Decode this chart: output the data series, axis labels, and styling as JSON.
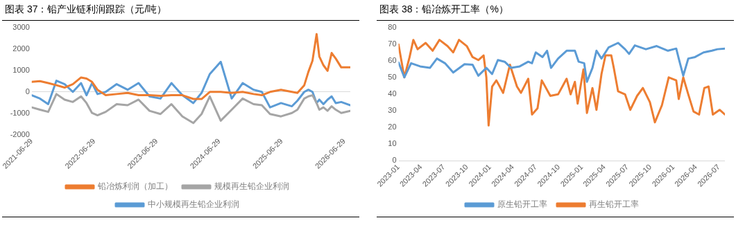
{
  "chart_data": [
    {
      "type": "line",
      "title": "图表 37：铅产业链利润跟踪（元/吨）",
      "legend": "bottom",
      "marker": "none",
      "x": [
        "2021-06-29",
        "2021-08-16",
        "2021-10-03",
        "2021-11-20",
        "2022-01-07",
        "2022-02-24",
        "2022-04-13",
        "2022-05-15",
        "2022-06-16",
        "2022-07-18",
        "2022-09-04",
        "2022-11-07",
        "2023-01-10",
        "2023-03-15",
        "2023-05-18",
        "2023-07-21",
        "2023-09-23",
        "2023-11-26",
        "2024-01-29",
        "2024-03-17",
        "2024-05-04",
        "2024-07-07",
        "2024-09-09",
        "2024-11-12",
        "2025-01-15",
        "2025-03-04",
        "2025-04-21",
        "2025-06-24",
        "2025-08-27",
        "2025-09-28",
        "2025-11-07",
        "2025-12-01",
        "2025-12-25",
        "2026-01-18",
        "2026-02-03",
        "2026-02-27",
        "2026-03-23",
        "2026-04-16",
        "2026-05-10",
        "2026-06-11",
        "2026-08-03"
      ],
      "xlim": [
        "2021-06-29",
        "2026-08-03"
      ],
      "xticks": [
        "2021-06-29",
        "2022-06-29",
        "2023-06-29",
        "2024-06-29",
        "2025-06-29",
        "2026-06-29"
      ],
      "ylim": [
        -2000,
        3000
      ],
      "yticks": [
        -2000,
        -1000,
        0,
        1000,
        2000,
        3000
      ],
      "series": [
        {
          "name": "铅冶炼利润（加工）",
          "color": "#ed7d31",
          "values": [
            465,
            500,
            410,
            310,
            200,
            360,
            670,
            620,
            465,
            100,
            -155,
            -100,
            -50,
            -155,
            -155,
            -185,
            -155,
            -155,
            -330,
            -330,
            0,
            0,
            -50,
            0,
            -100,
            -155,
            0,
            100,
            0,
            -50,
            310,
            930,
            1450,
            2690,
            1650,
            1240,
            980,
            1810,
            1550,
            1140,
            1140
          ]
        },
        {
          "name": "规模再生铅企业利润",
          "color": "#a5a5a5",
          "values": [
            -720,
            -830,
            -930,
            -100,
            -360,
            -470,
            -210,
            -520,
            -980,
            -1090,
            -930,
            -570,
            -620,
            -360,
            -880,
            -1030,
            -570,
            -1140,
            -1450,
            -1030,
            -210,
            -1340,
            -830,
            -310,
            -570,
            -620,
            -1030,
            -1140,
            -980,
            -830,
            -310,
            -210,
            -155,
            -520,
            -830,
            -720,
            -880,
            -670,
            -830,
            -980,
            -880
          ]
        },
        {
          "name": "中小规模再生铅企业利润",
          "color": "#5b9bd5",
          "values": [
            -155,
            -310,
            -570,
            520,
            360,
            0,
            410,
            -155,
            410,
            -100,
            0,
            360,
            100,
            410,
            -210,
            -310,
            410,
            -155,
            -520,
            -50,
            830,
            1400,
            -310,
            410,
            100,
            0,
            -720,
            -520,
            -670,
            -410,
            0,
            100,
            0,
            -520,
            -360,
            -570,
            -360,
            -210,
            -520,
            -470,
            -620
          ]
        }
      ]
    },
    {
      "type": "line",
      "title": "图表 38：铅冶炼开工率（%）",
      "legend": "bottom",
      "marker": "none",
      "xlim": [
        "2023-01-01",
        "2026-07-25"
      ],
      "xticks": [
        "2023-01",
        "2023-04",
        "2023-07",
        "2023-10",
        "2024-01",
        "2024-04",
        "2024-07",
        "2024-10",
        "2025-01",
        "2025-04",
        "2025-07",
        "2025-10",
        "2026-01",
        "2026-04",
        "2026-07"
      ],
      "ylim": [
        0,
        80
      ],
      "yticks": [
        0,
        10,
        20,
        30,
        40,
        50,
        60,
        70,
        80
      ],
      "series": [
        {
          "name": "原生铅开工率",
          "color": "#5b9bd5",
          "x": [
            "2023-01-01",
            "2023-01-24",
            "2023-02-20",
            "2023-03-28",
            "2023-05-06",
            "2023-06-03",
            "2023-07-05",
            "2023-08-07",
            "2023-09-21",
            "2023-10-23",
            "2023-11-15",
            "2023-12-17",
            "2024-01-09",
            "2024-02-01",
            "2024-02-28",
            "2024-03-25",
            "2024-04-28",
            "2024-06-01",
            "2024-06-16",
            "2024-07-01",
            "2024-07-28",
            "2024-08-15",
            "2024-08-31",
            "2024-09-28",
            "2024-11-01",
            "2024-12-04",
            "2024-12-19",
            "2025-01-10",
            "2025-01-21",
            "2025-02-12",
            "2025-02-28",
            "2025-03-20",
            "2025-04-17",
            "2025-05-25",
            "2025-06-22",
            "2025-07-08",
            "2025-07-31",
            "2025-09-13",
            "2025-10-26",
            "2025-12-10",
            "2026-01-12",
            "2026-01-22",
            "2026-02-09",
            "2026-03-01",
            "2026-03-28",
            "2026-05-01",
            "2026-06-03",
            "2026-06-25",
            "2026-07-25"
          ],
          "values": [
            58.9,
            50,
            58.5,
            56.6,
            55.7,
            61.3,
            58.5,
            52.9,
            57.9,
            57.6,
            51,
            55.7,
            52,
            60.4,
            59.4,
            55.7,
            56.6,
            59.4,
            58.5,
            65,
            62.2,
            66,
            55.7,
            61.3,
            66,
            66,
            59.4,
            58.5,
            47.3,
            55.7,
            66,
            61.3,
            67.9,
            70.7,
            66.9,
            64.1,
            69.2,
            66.9,
            68.8,
            66,
            67.3,
            61.3,
            51,
            61.3,
            62.2,
            65,
            66,
            66.9,
            67.3
          ]
        },
        {
          "name": "再生铅开工率",
          "color": "#ed7d31",
          "x": [
            "2023-01-01",
            "2023-01-24",
            "2023-02-14",
            "2023-03-01",
            "2023-03-18",
            "2023-04-19",
            "2023-05-17",
            "2023-06-13",
            "2023-07-15",
            "2023-08-07",
            "2023-08-30",
            "2023-09-30",
            "2023-10-23",
            "2023-11-15",
            "2023-12-06",
            "2023-12-17",
            "2023-12-26",
            "2024-01-09",
            "2024-01-26",
            "2024-02-22",
            "2024-03-20",
            "2024-04-17",
            "2024-05-03",
            "2024-06-01",
            "2024-06-16",
            "2024-07-08",
            "2024-07-25",
            "2024-08-28",
            "2024-09-28",
            "2024-11-01",
            "2024-11-17",
            "2024-12-04",
            "2024-12-15",
            "2025-01-07",
            "2025-01-21",
            "2025-02-12",
            "2025-02-28",
            "2025-03-20",
            "2025-04-05",
            "2025-04-28",
            "2025-05-08",
            "2025-05-25",
            "2025-06-22",
            "2025-07-13",
            "2025-08-09",
            "2025-09-01",
            "2025-09-29",
            "2025-10-19",
            "2025-11-16",
            "2025-12-13",
            "2026-01-12",
            "2026-01-22",
            "2026-02-09",
            "2026-03-01",
            "2026-03-22",
            "2026-04-13",
            "2026-05-04",
            "2026-05-21",
            "2026-06-07",
            "2026-07-04",
            "2026-07-25"
          ],
          "values": [
            69.7,
            50,
            62.2,
            72.5,
            66.9,
            70.7,
            66,
            72.5,
            68.8,
            65,
            72.5,
            68.8,
            62.2,
            60.4,
            63.2,
            50,
            21.1,
            44.5,
            48.2,
            40.7,
            57.6,
            44.5,
            40.7,
            49.2,
            27.7,
            31.4,
            48.2,
            38.9,
            39.8,
            49.2,
            39.8,
            47.3,
            34.2,
            54.8,
            28.6,
            43.6,
            30.5,
            52,
            63.2,
            63.2,
            55.7,
            41.7,
            39.8,
            30.5,
            38.9,
            43.6,
            35.1,
            23,
            33.3,
            50,
            48.2,
            37,
            50,
            39.8,
            29.5,
            27.7,
            43.6,
            44.5,
            27.7,
            30.5,
            27.7
          ]
        }
      ]
    }
  ]
}
